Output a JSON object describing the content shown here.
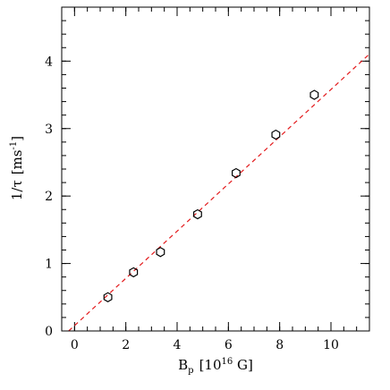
{
  "chart_data": {
    "type": "scatter",
    "xlabel_main": "B",
    "xlabel_sub": "p",
    "xlabel_unit_pre": "[10",
    "xlabel_unit_exp": "16",
    "xlabel_unit_post": " G]",
    "ylabel_main": "1/τ",
    "ylabel_unit_pre": "[ms",
    "ylabel_unit_exp": "-1",
    "ylabel_unit_post": "]",
    "xlim": [
      -0.5,
      11.5
    ],
    "ylim": [
      0,
      4.8
    ],
    "x_ticks": [
      0,
      2,
      4,
      6,
      8,
      10
    ],
    "x_tick_labels": [
      "0",
      "2",
      "4",
      "6",
      "8",
      "10"
    ],
    "y_ticks": [
      0,
      1,
      2,
      3,
      4
    ],
    "y_tick_labels": [
      "0",
      "1",
      "2",
      "3",
      "4"
    ],
    "x_minor_step": 0.5,
    "y_minor_step": 0.2,
    "points": [
      {
        "x": 1.3,
        "y": 0.5
      },
      {
        "x": 2.3,
        "y": 0.87
      },
      {
        "x": 3.35,
        "y": 1.17
      },
      {
        "x": 4.8,
        "y": 1.73
      },
      {
        "x": 6.3,
        "y": 2.34
      },
      {
        "x": 7.85,
        "y": 2.91
      },
      {
        "x": 9.35,
        "y": 3.5
      }
    ],
    "fit_line": {
      "intercept": 0.08,
      "slope": 0.35
    },
    "grid": false,
    "colors": {
      "fit": "#e31a1c",
      "marker": "#000000"
    }
  }
}
